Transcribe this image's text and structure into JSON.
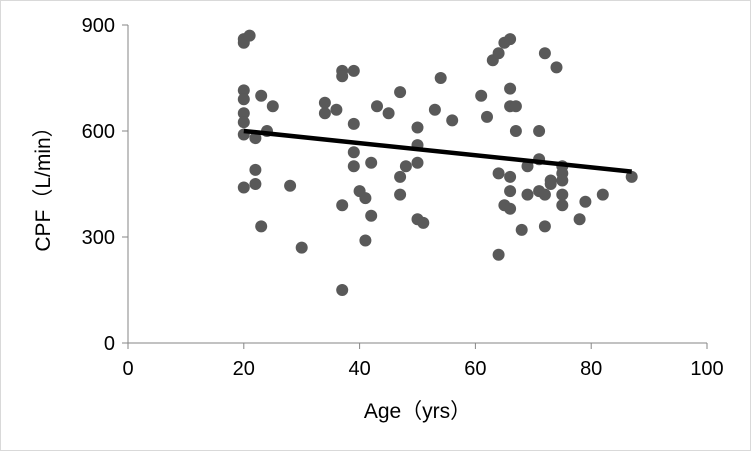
{
  "chart_data": {
    "type": "scatter",
    "xlabel": "Age（yrs）",
    "ylabel": "CPF（L/min）",
    "xlim": [
      0,
      100
    ],
    "ylim": [
      0,
      900
    ],
    "x_ticks": [
      "0",
      "20",
      "40",
      "60",
      "80",
      "100"
    ],
    "y_ticks": [
      "0",
      "300",
      "600",
      "900"
    ],
    "grid": false,
    "legend": "none",
    "marker_color": "#595959",
    "trendline_color": "#000000",
    "points": [
      [
        20,
        860
      ],
      [
        20,
        850
      ],
      [
        21,
        870
      ],
      [
        20,
        715
      ],
      [
        20,
        690
      ],
      [
        20,
        650
      ],
      [
        20,
        625
      ],
      [
        20,
        590
      ],
      [
        20,
        440
      ],
      [
        22,
        580
      ],
      [
        22,
        490
      ],
      [
        22,
        450
      ],
      [
        23,
        700
      ],
      [
        23,
        330
      ],
      [
        24,
        600
      ],
      [
        25,
        670
      ],
      [
        28,
        445
      ],
      [
        30,
        270
      ],
      [
        34,
        680
      ],
      [
        34,
        650
      ],
      [
        36,
        660
      ],
      [
        37,
        770
      ],
      [
        37,
        755
      ],
      [
        37,
        390
      ],
      [
        37,
        150
      ],
      [
        39,
        770
      ],
      [
        39,
        620
      ],
      [
        39,
        540
      ],
      [
        39,
        500
      ],
      [
        40,
        430
      ],
      [
        41,
        410
      ],
      [
        41,
        290
      ],
      [
        42,
        510
      ],
      [
        42,
        360
      ],
      [
        43,
        670
      ],
      [
        45,
        650
      ],
      [
        47,
        710
      ],
      [
        47,
        470
      ],
      [
        47,
        420
      ],
      [
        48,
        500
      ],
      [
        50,
        610
      ],
      [
        50,
        560
      ],
      [
        50,
        510
      ],
      [
        50,
        350
      ],
      [
        51,
        340
      ],
      [
        53,
        660
      ],
      [
        54,
        750
      ],
      [
        56,
        630
      ],
      [
        61,
        700
      ],
      [
        62,
        640
      ],
      [
        63,
        800
      ],
      [
        64,
        820
      ],
      [
        64,
        480
      ],
      [
        64,
        250
      ],
      [
        65,
        850
      ],
      [
        65,
        390
      ],
      [
        66,
        860
      ],
      [
        66,
        720
      ],
      [
        66,
        670
      ],
      [
        66,
        470
      ],
      [
        66,
        430
      ],
      [
        66,
        380
      ],
      [
        67,
        670
      ],
      [
        67,
        600
      ],
      [
        68,
        320
      ],
      [
        69,
        500
      ],
      [
        69,
        420
      ],
      [
        71,
        600
      ],
      [
        71,
        520
      ],
      [
        71,
        430
      ],
      [
        72,
        820
      ],
      [
        72,
        420
      ],
      [
        72,
        330
      ],
      [
        73,
        460
      ],
      [
        73,
        450
      ],
      [
        74,
        780
      ],
      [
        75,
        500
      ],
      [
        75,
        480
      ],
      [
        75,
        460
      ],
      [
        75,
        420
      ],
      [
        75,
        390
      ],
      [
        78,
        350
      ],
      [
        79,
        400
      ],
      [
        82,
        420
      ],
      [
        87,
        470
      ]
    ],
    "trendline": {
      "x": [
        20,
        87
      ],
      "y": [
        600,
        485
      ]
    }
  }
}
